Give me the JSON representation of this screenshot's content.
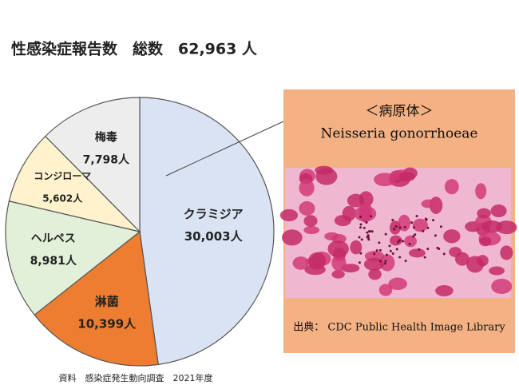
{
  "chart_data": {
    "type": "pie",
    "title": "性感染症報告数　総数　62,963 人",
    "categories": [
      "クラミジア",
      "淋菌",
      "ヘルペス",
      "コンジローマ",
      "梅毒"
    ],
    "values": [
      30003,
      10399,
      8981,
      5602,
      7798
    ],
    "value_labels": [
      "30,003人",
      "10,399人",
      "8,981人",
      "5,602人",
      "7,798人"
    ],
    "colors": [
      "#dae3f3",
      "#ed7d31",
      "#e2f0d9",
      "#fff2cc",
      "#ededed"
    ],
    "source": "資料　感染症発生動向調査　2021年度"
  },
  "panel": {
    "heading": "＜病原体＞",
    "organism": "Neisseria gonorrhoeae",
    "credit": "出典： CDC Public Health Image Library"
  }
}
